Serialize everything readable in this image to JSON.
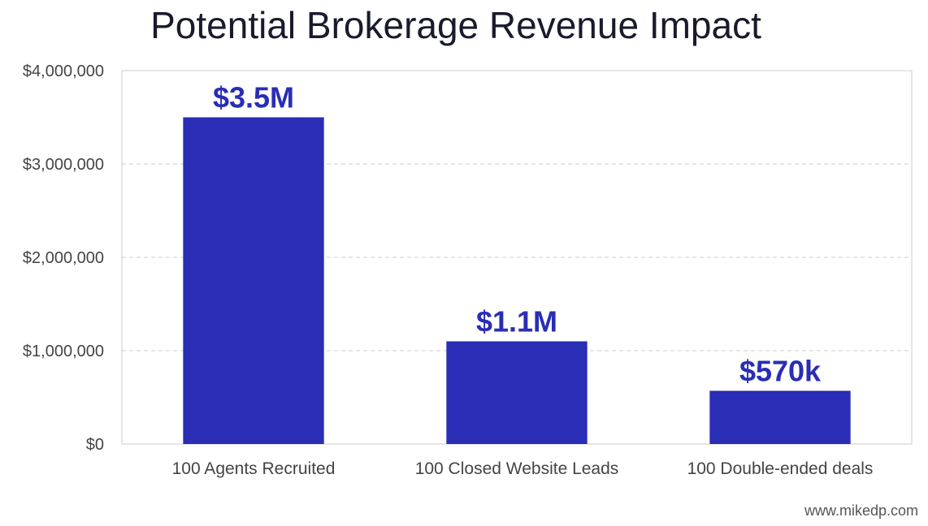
{
  "chart_data": {
    "type": "bar",
    "title": "Potential Brokerage Revenue Impact",
    "categories": [
      "100 Agents Recruited",
      "100 Closed Website Leads",
      "100 Double-ended deals"
    ],
    "values": [
      3500000,
      1100000,
      570000
    ],
    "data_labels": [
      "$3.5M",
      "$1.1M",
      "$570k"
    ],
    "ylim": [
      0,
      4000000
    ],
    "yticks": [
      0,
      1000000,
      2000000,
      3000000,
      4000000
    ],
    "ytick_labels": [
      "$0",
      "$1,000,000",
      "$2,000,000",
      "$3,000,000",
      "$4,000,000"
    ],
    "xlabel": "",
    "ylabel": "",
    "grid": true,
    "bar_color": "#2a2db5",
    "label_color": "#2a2db5"
  },
  "footer": {
    "watermark": "www.mikedp.com"
  }
}
